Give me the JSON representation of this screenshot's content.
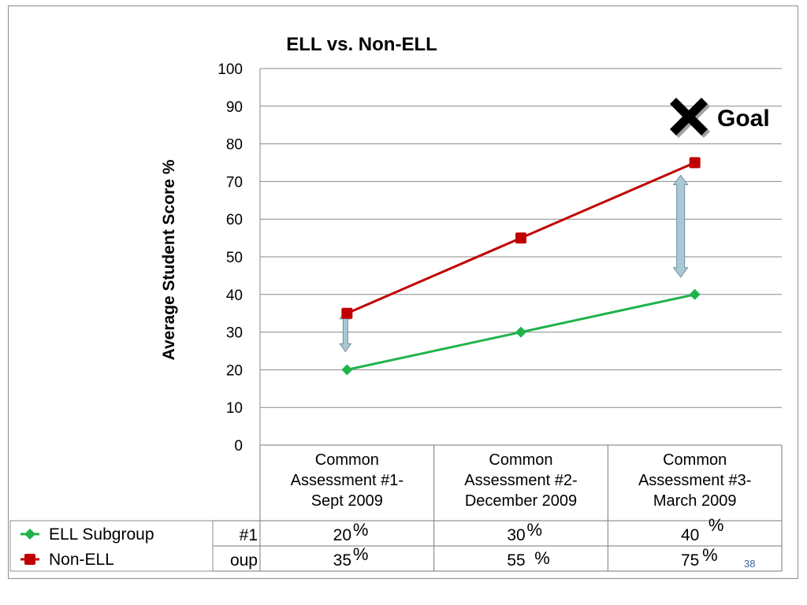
{
  "chart_data": {
    "type": "line",
    "title": "ELL vs. Non-ELL",
    "ylabel": "Average Student Score %",
    "ylim": [
      0,
      100
    ],
    "yticks": [
      "0",
      "10",
      "20",
      "30",
      "40",
      "50",
      "60",
      "70",
      "80",
      "90",
      "100"
    ],
    "categories": [
      [
        "Common",
        "Assessment #1-",
        "Sept 2009"
      ],
      [
        "Common",
        "Assessment #2-",
        "December 2009"
      ],
      [
        "Common",
        "Assessment #3-",
        "March 2009"
      ]
    ],
    "series": [
      {
        "name": "ELL Subgroup",
        "values": [
          20,
          30,
          40
        ],
        "color": "#1fb34a",
        "marker": "diamond"
      },
      {
        "name": "Non-ELL",
        "values": [
          35,
          55,
          75
        ],
        "color": "#c00000",
        "marker": "square"
      }
    ],
    "grid": true,
    "legend_position": "bottom-left",
    "table": {
      "row_labels": [
        "#1",
        "oup"
      ],
      "rows": [
        [
          "20",
          "30",
          "40 "
        ],
        [
          "35",
          "55 ",
          "75"
        ]
      ],
      "percent_sign": "%"
    },
    "annotations": {
      "goal_label": "Goal",
      "goal_icon": "x-mark-icon",
      "gap_arrow_color": "#a9c8d6"
    }
  },
  "page_number": "38"
}
